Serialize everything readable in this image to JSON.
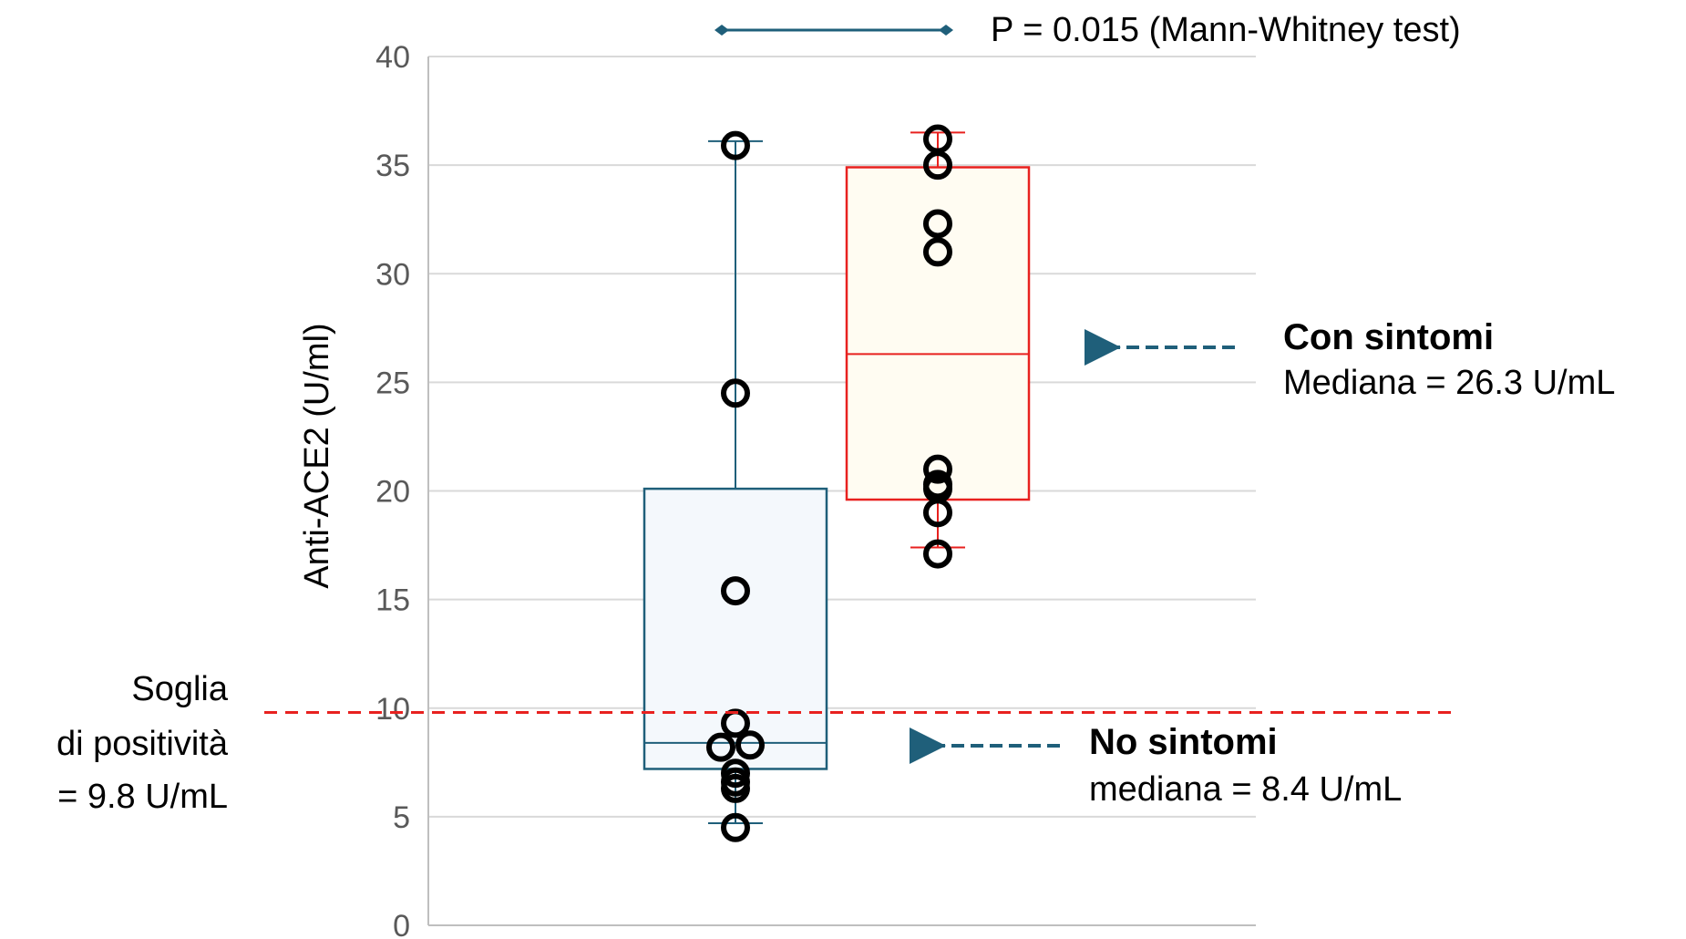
{
  "chart_data": {
    "type": "box",
    "ylabel": "Anti-ACE2 (U/ml)",
    "ylim": [
      0,
      40
    ],
    "yticks": [
      0,
      5,
      10,
      15,
      20,
      25,
      30,
      35,
      40
    ],
    "grid": true,
    "series": [
      {
        "name": "No sintomi",
        "color": "#1f5f7a",
        "fill": "#f4f8fc",
        "whisker_low": 4.7,
        "q1": 7.2,
        "median": 8.4,
        "q3": 20.1,
        "whisker_high": 36.1,
        "points": [
          4.5,
          6.3,
          6.6,
          7.0,
          8.2,
          8.3,
          9.3,
          15.4,
          24.5,
          35.9
        ]
      },
      {
        "name": "Con sintomi",
        "color": "#e8211f",
        "fill": "#fffcf2",
        "whisker_low": 17.4,
        "q1": 19.6,
        "median": 26.3,
        "q3": 34.9,
        "whisker_high": 36.5,
        "points": [
          17.1,
          19.0,
          20.1,
          20.3,
          21.0,
          31.0,
          32.3,
          35.0,
          36.2
        ]
      }
    ],
    "threshold": {
      "value": 9.8,
      "color": "#e8211f"
    },
    "annotations": {
      "pvalue": "P = 0.015 (Mann-Whitney test)",
      "threshold_lines": [
        "Soglia",
        "di positività",
        "= 9.8 U/mL"
      ],
      "with_symptoms_title": "Con sintomi",
      "with_symptoms_median": "Mediana = 26.3 U/mL",
      "no_symptoms_title": "No sintomi",
      "no_symptoms_median": "mediana = 8.4 U/mL"
    }
  }
}
